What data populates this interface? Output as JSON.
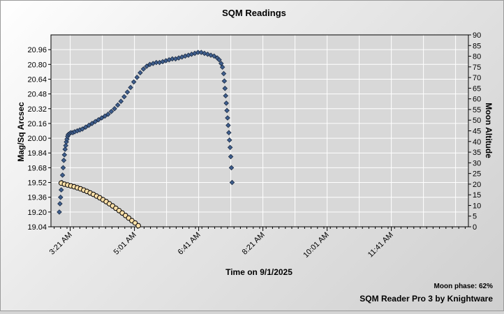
{
  "chart_data": {
    "type": "scatter",
    "title": "SQM Readings",
    "xlabel": "Time on 9/1/2025",
    "ylabel_left": "Mag/Sq Arcsec",
    "ylabel_right": "Moon Altitude",
    "x_tick_labels": [
      "3:21 AM",
      "5:01 AM",
      "6:41 AM",
      "8:21 AM",
      "10:01 AM",
      "11:41 AM"
    ],
    "x_tick_minutes": [
      201,
      301,
      401,
      501,
      601,
      701
    ],
    "x_range_minutes": [
      171,
      821
    ],
    "y_left_ticks": [
      "19.04",
      "19.20",
      "19.36",
      "19.52",
      "19.68",
      "19.84",
      "20.00",
      "20.16",
      "20.32",
      "20.48",
      "20.64",
      "20.80",
      "20.96"
    ],
    "y_left_range": [
      19.04,
      21.12
    ],
    "y_right_ticks": [
      "0",
      "5",
      "10",
      "15",
      "20",
      "25",
      "30",
      "35",
      "40",
      "45",
      "50",
      "55",
      "60",
      "65",
      "70",
      "75",
      "80",
      "85",
      "90"
    ],
    "y_right_range": [
      0,
      90
    ],
    "grid": true,
    "series": [
      {
        "color": "#3f5f8f",
        "marker": "diamond",
        "axis": "left",
        "points": [
          [
            184,
            19.2
          ],
          [
            185,
            19.29
          ],
          [
            186,
            19.36
          ],
          [
            187,
            19.44
          ],
          [
            188,
            19.52
          ],
          [
            189,
            19.6
          ],
          [
            190,
            19.68
          ],
          [
            191,
            19.76
          ],
          [
            192,
            19.82
          ],
          [
            193,
            19.88
          ],
          [
            194,
            19.92
          ],
          [
            195,
            19.96
          ],
          [
            196,
            19.99
          ],
          [
            197,
            20.02
          ],
          [
            198,
            20.04
          ],
          [
            200,
            20.05
          ],
          [
            202,
            20.06
          ],
          [
            205,
            20.06
          ],
          [
            208,
            20.07
          ],
          [
            212,
            20.08
          ],
          [
            216,
            20.09
          ],
          [
            220,
            20.1
          ],
          [
            225,
            20.12
          ],
          [
            230,
            20.14
          ],
          [
            235,
            20.16
          ],
          [
            240,
            20.18
          ],
          [
            245,
            20.2
          ],
          [
            250,
            20.22
          ],
          [
            255,
            20.24
          ],
          [
            260,
            20.26
          ],
          [
            265,
            20.29
          ],
          [
            270,
            20.32
          ],
          [
            275,
            20.36
          ],
          [
            280,
            20.4
          ],
          [
            285,
            20.45
          ],
          [
            290,
            20.5
          ],
          [
            295,
            20.55
          ],
          [
            300,
            20.61
          ],
          [
            305,
            20.66
          ],
          [
            310,
            20.71
          ],
          [
            315,
            20.75
          ],
          [
            320,
            20.78
          ],
          [
            325,
            20.8
          ],
          [
            330,
            20.81
          ],
          [
            335,
            20.82
          ],
          [
            340,
            20.82
          ],
          [
            345,
            20.83
          ],
          [
            350,
            20.84
          ],
          [
            355,
            20.85
          ],
          [
            360,
            20.86
          ],
          [
            365,
            20.86
          ],
          [
            370,
            20.87
          ],
          [
            375,
            20.88
          ],
          [
            380,
            20.89
          ],
          [
            385,
            20.9
          ],
          [
            390,
            20.91
          ],
          [
            395,
            20.92
          ],
          [
            400,
            20.93
          ],
          [
            405,
            20.93
          ],
          [
            410,
            20.92
          ],
          [
            415,
            20.91
          ],
          [
            420,
            20.9
          ],
          [
            425,
            20.89
          ],
          [
            430,
            20.87
          ],
          [
            433,
            20.85
          ],
          [
            436,
            20.81
          ],
          [
            438,
            20.77
          ],
          [
            440,
            20.7
          ],
          [
            441,
            20.62
          ],
          [
            442,
            20.54
          ],
          [
            443,
            20.46
          ],
          [
            444,
            20.38
          ],
          [
            445,
            20.3
          ],
          [
            446,
            20.22
          ],
          [
            447,
            20.14
          ],
          [
            448,
            20.06
          ],
          [
            449,
            19.98
          ],
          [
            450,
            19.9
          ],
          [
            451,
            19.8
          ],
          [
            452,
            19.68
          ],
          [
            453,
            19.52
          ]
        ]
      },
      {
        "color": "#ffe0a8",
        "marker": "circle",
        "axis": "right",
        "points": [
          [
            187,
            20.5
          ],
          [
            192,
            20.0
          ],
          [
            197,
            19.6
          ],
          [
            202,
            19.2
          ],
          [
            207,
            18.8
          ],
          [
            212,
            18.3
          ],
          [
            217,
            17.8
          ],
          [
            222,
            17.2
          ],
          [
            227,
            16.6
          ],
          [
            232,
            15.9
          ],
          [
            237,
            15.2
          ],
          [
            242,
            14.4
          ],
          [
            247,
            13.6
          ],
          [
            252,
            12.7
          ],
          [
            257,
            11.8
          ],
          [
            262,
            10.8
          ],
          [
            267,
            9.8
          ],
          [
            272,
            8.7
          ],
          [
            277,
            7.6
          ],
          [
            282,
            6.5
          ],
          [
            287,
            5.3
          ],
          [
            292,
            4.1
          ],
          [
            297,
            2.9
          ],
          [
            302,
            1.8
          ],
          [
            307,
            0.5
          ]
        ]
      }
    ],
    "moon_phase": "Moon phase: 62%",
    "footer": "SQM Reader Pro 3 by Knightware"
  }
}
